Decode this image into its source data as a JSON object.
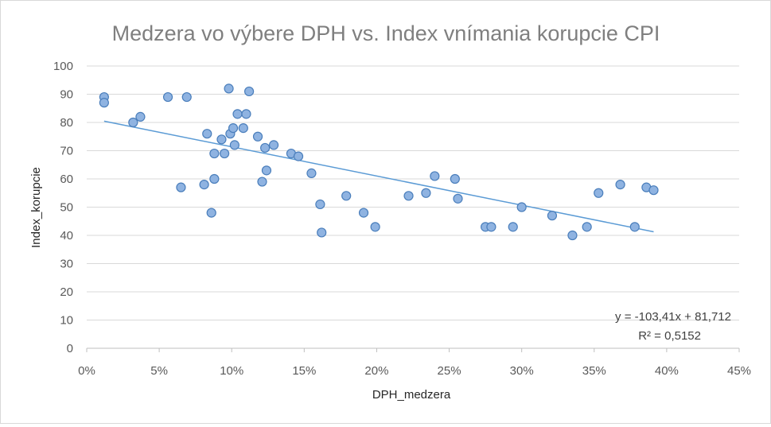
{
  "chart_data": {
    "type": "scatter",
    "title": "Medzera vo výbere DPH vs. Index vnímania korupcie CPI",
    "xlabel": "DPH_medzera",
    "ylabel": "Index_korupcie",
    "xlim": [
      0,
      0.45
    ],
    "ylim": [
      0,
      100
    ],
    "x_ticks": [
      "0%",
      "5%",
      "10%",
      "15%",
      "20%",
      "25%",
      "30%",
      "35%",
      "40%",
      "45%"
    ],
    "y_ticks": [
      "0",
      "10",
      "20",
      "30",
      "40",
      "50",
      "60",
      "70",
      "80",
      "90",
      "100"
    ],
    "grid": "horizontal",
    "points": [
      [
        0.012,
        89
      ],
      [
        0.012,
        87
      ],
      [
        0.032,
        80
      ],
      [
        0.037,
        82
      ],
      [
        0.056,
        89
      ],
      [
        0.069,
        89
      ],
      [
        0.065,
        57
      ],
      [
        0.081,
        58
      ],
      [
        0.083,
        76
      ],
      [
        0.086,
        48
      ],
      [
        0.088,
        60
      ],
      [
        0.088,
        69
      ],
      [
        0.093,
        74
      ],
      [
        0.095,
        69
      ],
      [
        0.098,
        92
      ],
      [
        0.099,
        76
      ],
      [
        0.101,
        78
      ],
      [
        0.102,
        72
      ],
      [
        0.104,
        83
      ],
      [
        0.108,
        78
      ],
      [
        0.11,
        83
      ],
      [
        0.112,
        91
      ],
      [
        0.118,
        75
      ],
      [
        0.121,
        59
      ],
      [
        0.123,
        71
      ],
      [
        0.124,
        63
      ],
      [
        0.129,
        72
      ],
      [
        0.141,
        69
      ],
      [
        0.146,
        68
      ],
      [
        0.155,
        62
      ],
      [
        0.161,
        51
      ],
      [
        0.162,
        41
      ],
      [
        0.179,
        54
      ],
      [
        0.191,
        48
      ],
      [
        0.199,
        43
      ],
      [
        0.222,
        54
      ],
      [
        0.234,
        55
      ],
      [
        0.24,
        61
      ],
      [
        0.254,
        60
      ],
      [
        0.256,
        53
      ],
      [
        0.275,
        43
      ],
      [
        0.279,
        43
      ],
      [
        0.294,
        43
      ],
      [
        0.3,
        50
      ],
      [
        0.321,
        47
      ],
      [
        0.335,
        40
      ],
      [
        0.345,
        43
      ],
      [
        0.353,
        55
      ],
      [
        0.368,
        58
      ],
      [
        0.378,
        43
      ],
      [
        0.386,
        57
      ],
      [
        0.391,
        56
      ]
    ],
    "trendline": {
      "slope": -103.41,
      "intercept": 81.712,
      "x_range": [
        0.012,
        0.391
      ]
    },
    "equation": "y = -103,41x + 81,712",
    "r_squared": "R² = 0,5152",
    "colors": {
      "marker_fill": "#8fb3e1",
      "marker_edge": "#4a7ebb",
      "trendline": "#5b9bd5"
    }
  }
}
